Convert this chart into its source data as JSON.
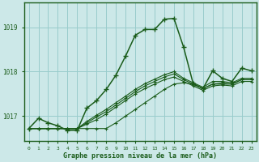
{
  "title": "Graphe pression niveau de la mer (hPa)",
  "bg_color": "#cce8e8",
  "grid_color": "#99cccc",
  "line_color": "#1a5c1a",
  "xlim": [
    -0.5,
    23.5
  ],
  "ylim": [
    1016.45,
    1019.55
  ],
  "yticks": [
    1017,
    1018,
    1019
  ],
  "xticks": [
    0,
    1,
    2,
    3,
    4,
    5,
    6,
    7,
    8,
    9,
    10,
    11,
    12,
    13,
    14,
    15,
    16,
    17,
    18,
    19,
    20,
    21,
    22,
    23
  ],
  "main_line": [
    1016.72,
    1016.95,
    1016.85,
    1016.78,
    1016.68,
    1016.68,
    1017.18,
    1017.35,
    1017.6,
    1017.92,
    1018.35,
    1018.82,
    1018.95,
    1018.95,
    1019.18,
    1019.2,
    1018.55,
    1017.72,
    1017.62,
    1018.02,
    1017.85,
    1017.78,
    1018.08,
    1018.02
  ],
  "diag_lines": [
    [
      1016.72,
      1016.72,
      1016.72,
      1016.72,
      1016.72,
      1016.72,
      1016.72,
      1016.72,
      1016.72,
      1016.85,
      1017.0,
      1017.15,
      1017.3,
      1017.45,
      1017.6,
      1017.72,
      1017.75,
      1017.72,
      1017.62,
      1017.72,
      1017.72,
      1017.72,
      1017.82,
      1017.82
    ],
    [
      1016.72,
      1016.72,
      1016.72,
      1016.72,
      1016.72,
      1016.72,
      1016.85,
      1016.98,
      1017.1,
      1017.25,
      1017.4,
      1017.55,
      1017.68,
      1017.78,
      1017.88,
      1017.95,
      1017.82,
      1017.72,
      1017.62,
      1017.72,
      1017.75,
      1017.72,
      1017.82,
      1017.82
    ],
    [
      1016.72,
      1016.72,
      1016.72,
      1016.72,
      1016.72,
      1016.72,
      1016.82,
      1016.92,
      1017.05,
      1017.2,
      1017.35,
      1017.5,
      1017.62,
      1017.72,
      1017.82,
      1017.88,
      1017.78,
      1017.68,
      1017.58,
      1017.68,
      1017.7,
      1017.68,
      1017.78,
      1017.78
    ],
    [
      1016.72,
      1016.72,
      1016.72,
      1016.72,
      1016.72,
      1016.72,
      1016.88,
      1017.02,
      1017.15,
      1017.3,
      1017.45,
      1017.6,
      1017.73,
      1017.83,
      1017.93,
      1018.0,
      1017.85,
      1017.75,
      1017.65,
      1017.78,
      1017.78,
      1017.75,
      1017.85,
      1017.85
    ]
  ]
}
